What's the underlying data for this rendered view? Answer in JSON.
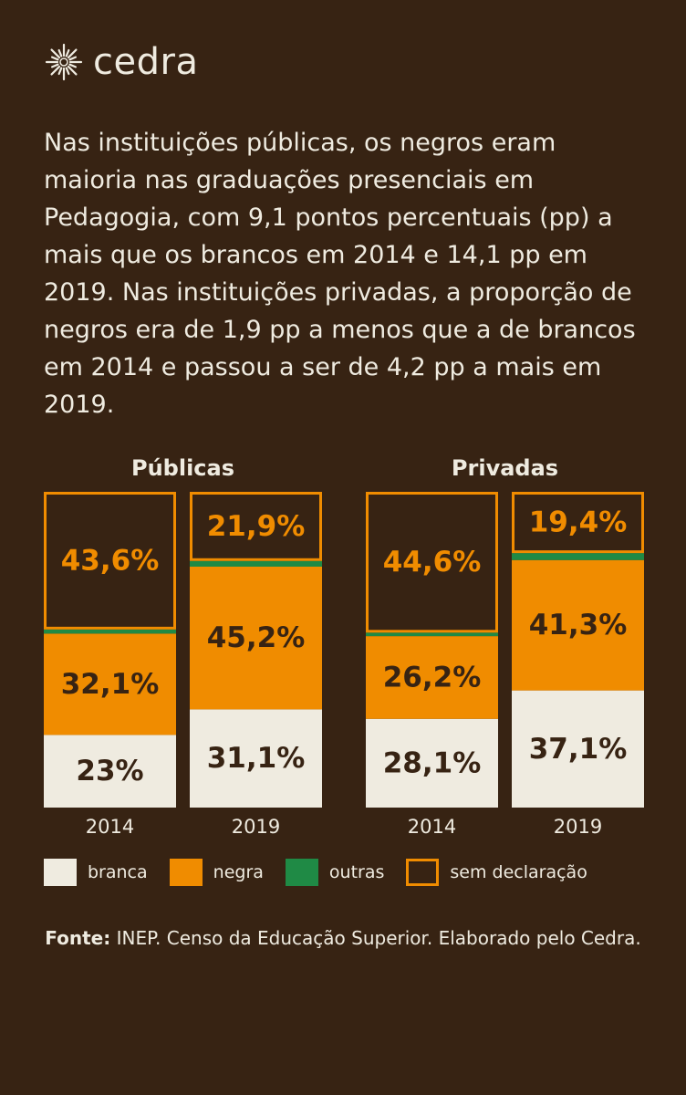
{
  "brand": {
    "name": "cedra",
    "logo_icon": "sun-burst-icon"
  },
  "intro": "Nas instituições públicas, os negros eram maioria nas graduações presenciais em Pedagogia, com 9,1 pontos percentuais (pp) a mais que os brancos em 2014 e 14,1 pp em 2019. Nas instituições privadas, a proporção de negros era de 1,9 pp a menos que a de brancos em 2014 e passou a ser de 4,2 pp a mais em 2019.",
  "colors": {
    "background": "#372313",
    "branca": "#efebe0",
    "negra": "#f08c00",
    "outras": "#1f8a45",
    "sem_declaracao": "#f08c00",
    "dark_text": "#372313"
  },
  "chart_data": {
    "type": "bar",
    "stacked": true,
    "value_unit": "%",
    "groups": [
      {
        "title": "Públicas",
        "bars": [
          {
            "year": "2014",
            "branca": 23.0,
            "negra": 32.1,
            "outras": 1.3,
            "sem_declaracao": 43.6,
            "labels": {
              "branca": "23%",
              "negra": "32,1%",
              "sem_declaracao": "43,6%"
            }
          },
          {
            "year": "2019",
            "branca": 31.1,
            "negra": 45.2,
            "outras": 1.8,
            "sem_declaracao": 21.9,
            "labels": {
              "branca": "31,1%",
              "negra": "45,2%",
              "sem_declaracao": "21,9%"
            }
          }
        ]
      },
      {
        "title": "Privadas",
        "bars": [
          {
            "year": "2014",
            "branca": 28.1,
            "negra": 26.2,
            "outras": 1.1,
            "sem_declaracao": 44.6,
            "labels": {
              "branca": "28,1%",
              "negra": "26,2%",
              "sem_declaracao": "44,6%"
            }
          },
          {
            "year": "2019",
            "branca": 37.1,
            "negra": 41.3,
            "outras": 2.2,
            "sem_declaracao": 19.4,
            "labels": {
              "branca": "37,1%",
              "negra": "41,3%",
              "sem_declaracao": "19,4%"
            }
          }
        ]
      }
    ],
    "legend": [
      {
        "key": "branca",
        "label": "branca"
      },
      {
        "key": "negra",
        "label": "negra"
      },
      {
        "key": "outras",
        "label": "outras"
      },
      {
        "key": "sem_declaracao",
        "label": "sem declaração"
      }
    ],
    "legend_position": "bottom"
  },
  "source": {
    "label": "Fonte:",
    "text": " INEP. Censo da Educação Superior. Elaborado pelo Cedra."
  }
}
